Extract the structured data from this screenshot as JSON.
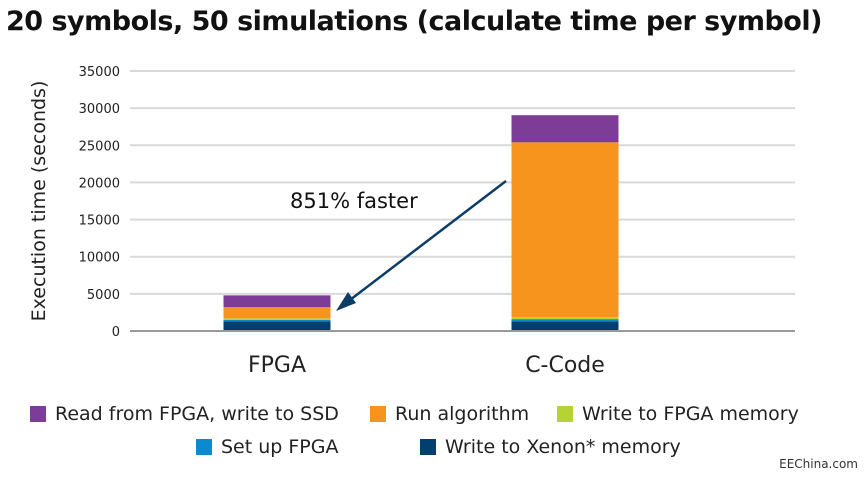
{
  "chart_data": {
    "type": "bar",
    "stacked": true,
    "title": "20 symbols, 50 simulations (calculate time per symbol)",
    "ylabel": "Execution time (seconds)",
    "xlabel": "",
    "ylim": [
      0,
      35000
    ],
    "yticks": [
      0,
      5000,
      10000,
      15000,
      20000,
      25000,
      30000,
      35000
    ],
    "grid": true,
    "legend_placement": "bottom",
    "categories": [
      "FPGA",
      "C-Code"
    ],
    "series": [
      {
        "name": "Write to Xenon* memory",
        "color": "#003f6e",
        "values": [
          1300,
          1300
        ]
      },
      {
        "name": "Set up FPGA",
        "color": "#0a8ad0",
        "values": [
          200,
          300
        ]
      },
      {
        "name": "Write to FPGA memory",
        "color": "#b5d334",
        "values": [
          200,
          250
        ]
      },
      {
        "name": "Run algorithm",
        "color": "#f7941e",
        "values": [
          1500,
          23550
        ]
      },
      {
        "name": "Read from FPGA, write to SSD",
        "color": "#7d3c96",
        "values": [
          1600,
          3650
        ]
      }
    ],
    "legend_order": [
      4,
      3,
      2,
      1,
      0
    ],
    "annotation": {
      "text": "851% faster",
      "color": "#0d3d66"
    }
  },
  "watermark": "EEChina.com"
}
